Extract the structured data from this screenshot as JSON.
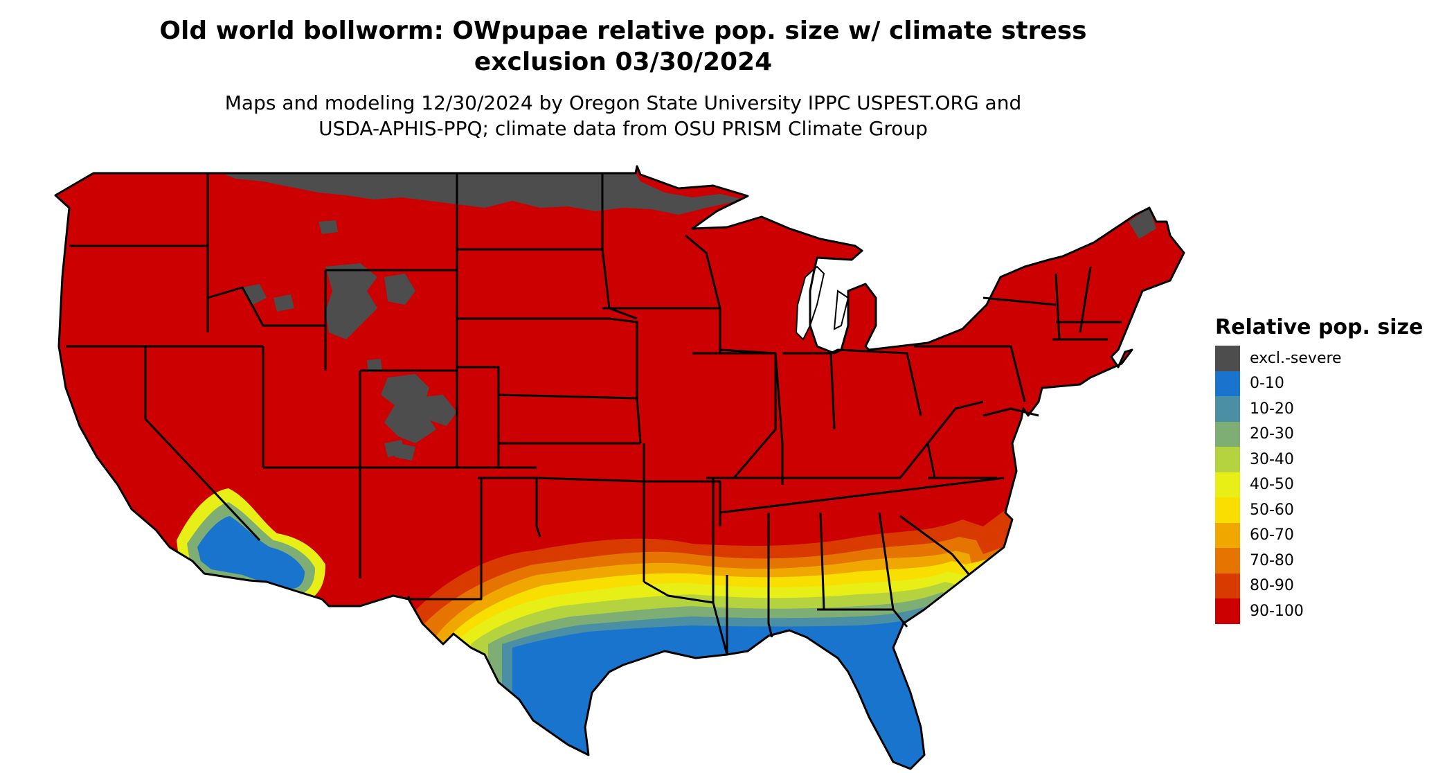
{
  "title_lines": [
    "Old world bollworm: OWpupae relative pop. size w/ climate stress",
    "exclusion 03/30/2024"
  ],
  "subtitle_lines": [
    "Maps and modeling 12/30/2024 by Oregon State University IPPC USPEST.ORG and",
    "USDA-APHIS-PPQ; climate data from OSU PRISM Climate Group"
  ],
  "legend": {
    "title": "Relative pop. size",
    "items": [
      {
        "label": "excl.-severe",
        "color": "#4d4d4d"
      },
      {
        "label": "0-10",
        "color": "#1874cd"
      },
      {
        "label": "10-20",
        "color": "#4a8fa3"
      },
      {
        "label": "20-30",
        "color": "#7fae74"
      },
      {
        "label": "30-40",
        "color": "#b5d33e"
      },
      {
        "label": "40-50",
        "color": "#e8ef17"
      },
      {
        "label": "50-60",
        "color": "#f8df00"
      },
      {
        "label": "60-70",
        "color": "#f0a800"
      },
      {
        "label": "70-80",
        "color": "#e57400"
      },
      {
        "label": "80-90",
        "color": "#d93a00"
      },
      {
        "label": "90-100",
        "color": "#cc0000"
      }
    ]
  }
}
